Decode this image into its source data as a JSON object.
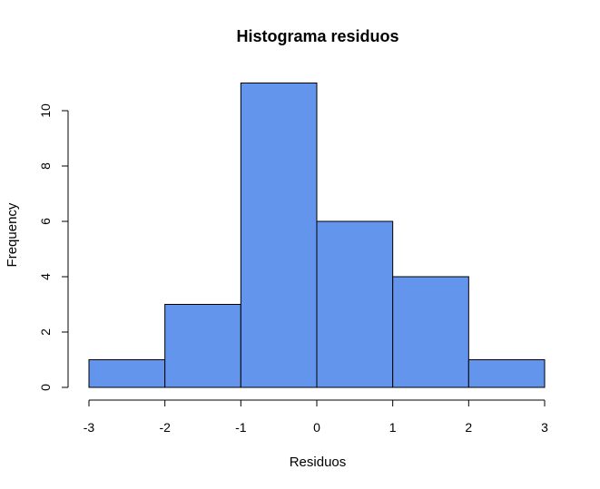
{
  "colors": {
    "bar_fill": "#6495ED",
    "bar_stroke": "#000000",
    "background": "#ffffff"
  },
  "chart_data": {
    "type": "bar",
    "title": "Histograma residuos",
    "xlabel": "Residuos",
    "ylabel": "Frequency",
    "bins": [
      [
        -3,
        -2
      ],
      [
        -2,
        -1
      ],
      [
        -1,
        0
      ],
      [
        0,
        1
      ],
      [
        1,
        2
      ],
      [
        2,
        3
      ]
    ],
    "values": [
      1,
      3,
      11,
      6,
      4,
      1
    ],
    "xlim": [
      -3,
      3
    ],
    "ylim": [
      0,
      11
    ],
    "xticks": [
      -3,
      -2,
      -1,
      0,
      1,
      2,
      3
    ],
    "yticks": [
      0,
      2,
      4,
      6,
      8,
      10
    ],
    "grid": false
  }
}
